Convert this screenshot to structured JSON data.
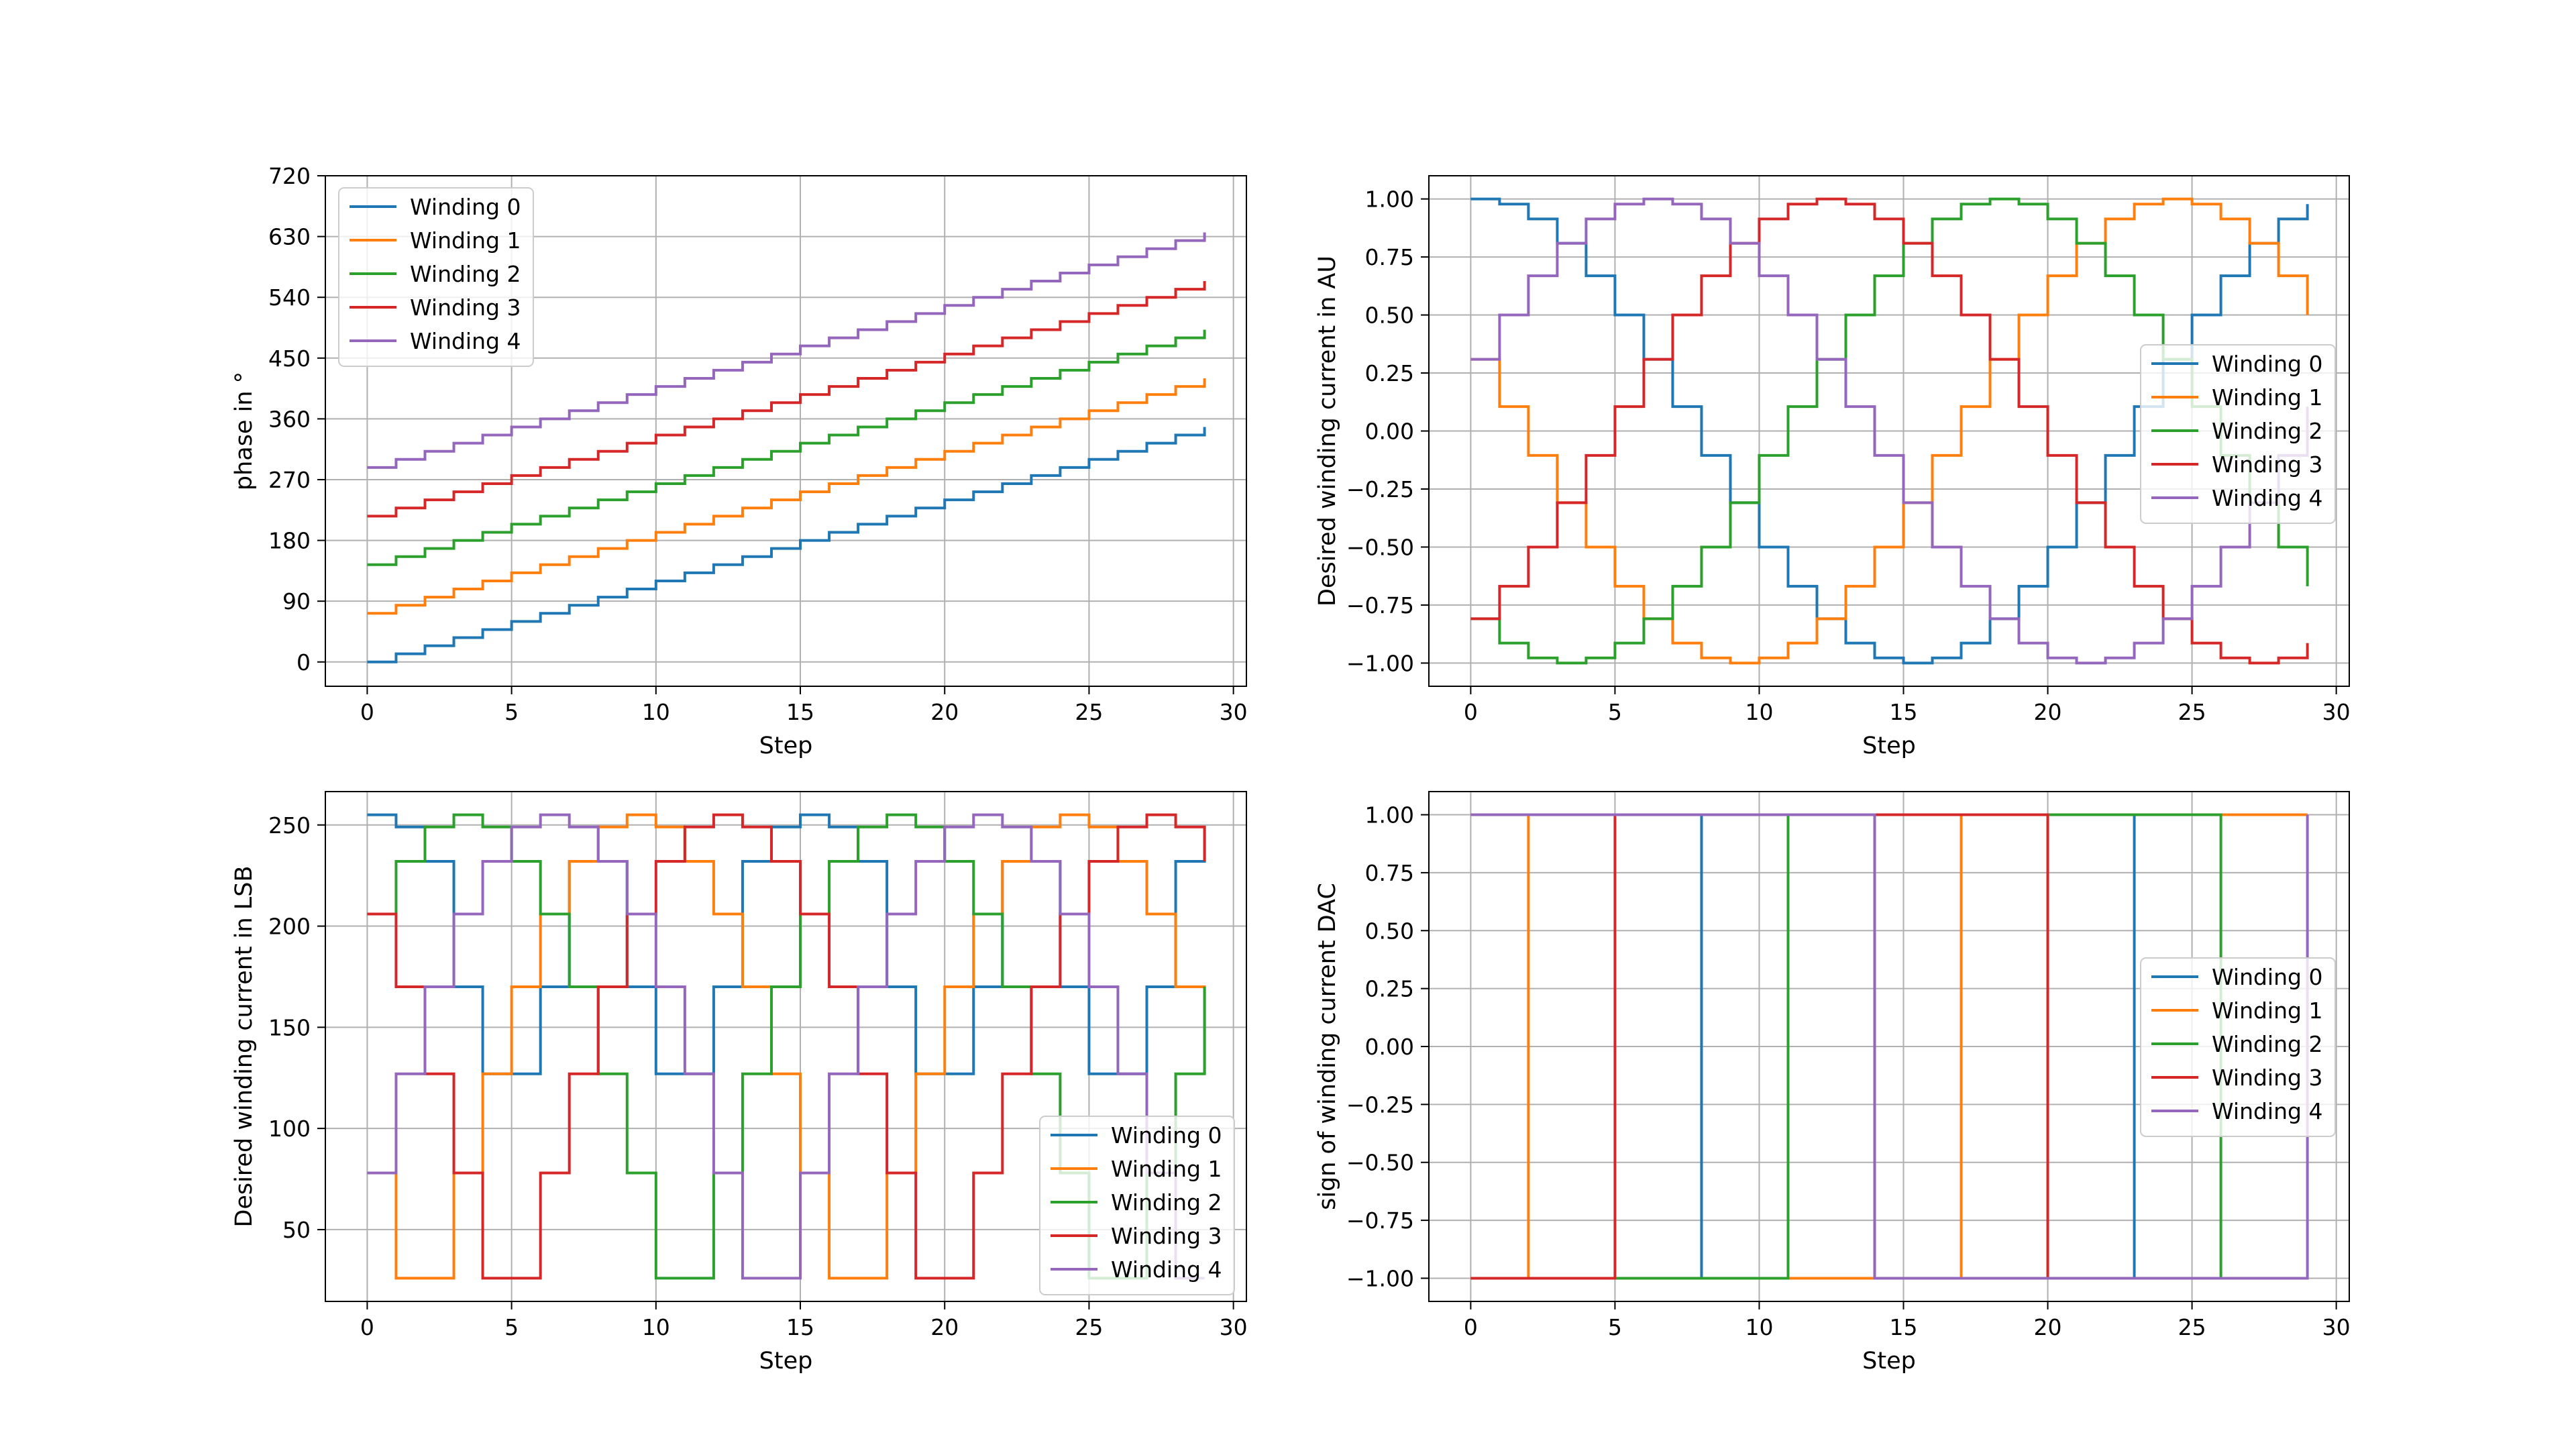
{
  "colors": [
    "#1f77b4",
    "#ff7f0e",
    "#2ca02c",
    "#d62728",
    "#9467bd"
  ],
  "chart_data": [
    {
      "type": "line",
      "step": "post",
      "xlabel": "Step",
      "ylabel": "phase in °",
      "xlim": [
        -1.45,
        30.45
      ],
      "ylim": [
        -36,
        720
      ],
      "xticks": [
        0,
        5,
        10,
        15,
        20,
        25,
        30
      ],
      "yticks": [
        0,
        90,
        180,
        270,
        360,
        450,
        540,
        630,
        720
      ],
      "grid": true,
      "legend": "top-left",
      "x": [
        0,
        1,
        2,
        3,
        4,
        5,
        6,
        7,
        8,
        9,
        10,
        11,
        12,
        13,
        14,
        15,
        16,
        17,
        18,
        19,
        20,
        21,
        22,
        23,
        24,
        25,
        26,
        27,
        28,
        29
      ],
      "series": [
        {
          "name": "Winding 0",
          "values": [
            0,
            12,
            24,
            36,
            48,
            60,
            72,
            84,
            96,
            108,
            120,
            132,
            144,
            156,
            168,
            180,
            192,
            204,
            216,
            228,
            240,
            252,
            264,
            276,
            288,
            300,
            312,
            324,
            336,
            348
          ]
        },
        {
          "name": "Winding 1",
          "values": [
            72,
            84,
            96,
            108,
            120,
            132,
            144,
            156,
            168,
            180,
            192,
            204,
            216,
            228,
            240,
            252,
            264,
            276,
            288,
            300,
            312,
            324,
            336,
            348,
            360,
            372,
            384,
            396,
            408,
            420
          ]
        },
        {
          "name": "Winding 2",
          "values": [
            144,
            156,
            168,
            180,
            192,
            204,
            216,
            228,
            240,
            252,
            264,
            276,
            288,
            300,
            312,
            324,
            336,
            348,
            360,
            372,
            384,
            396,
            408,
            420,
            432,
            444,
            456,
            468,
            480,
            492
          ]
        },
        {
          "name": "Winding 3",
          "values": [
            216,
            228,
            240,
            252,
            264,
            276,
            288,
            300,
            312,
            324,
            336,
            348,
            360,
            372,
            384,
            396,
            408,
            420,
            432,
            444,
            456,
            468,
            480,
            492,
            504,
            516,
            528,
            540,
            552,
            564
          ]
        },
        {
          "name": "Winding 4",
          "values": [
            288,
            300,
            312,
            324,
            336,
            348,
            360,
            372,
            384,
            396,
            408,
            420,
            432,
            444,
            456,
            468,
            480,
            492,
            504,
            516,
            528,
            540,
            552,
            564,
            576,
            588,
            600,
            612,
            624,
            636
          ]
        }
      ]
    },
    {
      "type": "line",
      "step": "post",
      "xlabel": "Step",
      "ylabel": "Desired winding current in AU",
      "xlim": [
        -1.45,
        30.45
      ],
      "ylim": [
        -1.1,
        1.1
      ],
      "xticks": [
        0,
        5,
        10,
        15,
        20,
        25,
        30
      ],
      "yticks": [
        -1.0,
        -0.75,
        -0.5,
        -0.25,
        0.0,
        0.25,
        0.5,
        0.75,
        1.0
      ],
      "yticklabels": [
        "−1.00",
        "−0.75",
        "−0.50",
        "−0.25",
        "0.00",
        "0.25",
        "0.50",
        "0.75",
        "1.00"
      ],
      "grid": true,
      "legend": "center-right",
      "x": [
        0,
        1,
        2,
        3,
        4,
        5,
        6,
        7,
        8,
        9,
        10,
        11,
        12,
        13,
        14,
        15,
        16,
        17,
        18,
        19,
        20,
        21,
        22,
        23,
        24,
        25,
        26,
        27,
        28,
        29
      ],
      "series": [
        {
          "name": "Winding 0",
          "values": [
            1.0,
            0.978,
            0.914,
            0.809,
            0.669,
            0.5,
            0.309,
            0.105,
            -0.105,
            -0.309,
            -0.5,
            -0.669,
            -0.809,
            -0.914,
            -0.978,
            -1.0,
            -0.978,
            -0.914,
            -0.809,
            -0.669,
            -0.5,
            -0.309,
            -0.105,
            0.105,
            0.309,
            0.5,
            0.669,
            0.809,
            0.914,
            0.978
          ]
        },
        {
          "name": "Winding 1",
          "values": [
            0.309,
            0.105,
            -0.105,
            -0.309,
            -0.5,
            -0.669,
            -0.809,
            -0.914,
            -0.978,
            -1.0,
            -0.978,
            -0.914,
            -0.809,
            -0.669,
            -0.5,
            -0.309,
            -0.105,
            0.105,
            0.309,
            0.5,
            0.669,
            0.809,
            0.914,
            0.978,
            1.0,
            0.978,
            0.914,
            0.809,
            0.669,
            0.5
          ]
        },
        {
          "name": "Winding 2",
          "values": [
            -0.809,
            -0.914,
            -0.978,
            -1.0,
            -0.978,
            -0.914,
            -0.809,
            -0.669,
            -0.5,
            -0.309,
            -0.105,
            0.105,
            0.309,
            0.5,
            0.669,
            0.809,
            0.914,
            0.978,
            1.0,
            0.978,
            0.914,
            0.809,
            0.669,
            0.5,
            0.309,
            0.105,
            -0.105,
            -0.309,
            -0.5,
            -0.669
          ]
        },
        {
          "name": "Winding 3",
          "values": [
            -0.809,
            -0.669,
            -0.5,
            -0.309,
            -0.105,
            0.105,
            0.309,
            0.5,
            0.669,
            0.809,
            0.914,
            0.978,
            1.0,
            0.978,
            0.914,
            0.809,
            0.669,
            0.5,
            0.309,
            0.105,
            -0.105,
            -0.309,
            -0.5,
            -0.669,
            -0.809,
            -0.914,
            -0.978,
            -1.0,
            -0.978,
            -0.914
          ]
        },
        {
          "name": "Winding 4",
          "values": [
            0.309,
            0.5,
            0.669,
            0.809,
            0.914,
            0.978,
            1.0,
            0.978,
            0.914,
            0.809,
            0.669,
            0.5,
            0.309,
            0.105,
            -0.105,
            -0.309,
            -0.5,
            -0.669,
            -0.809,
            -0.914,
            -0.978,
            -1.0,
            -0.978,
            -0.914,
            -0.809,
            -0.669,
            -0.5,
            -0.309,
            -0.105,
            0.105
          ]
        }
      ]
    },
    {
      "type": "line",
      "step": "post",
      "xlabel": "Step",
      "ylabel": "Desired winding current in LSB",
      "xlim": [
        -1.45,
        30.45
      ],
      "ylim": [
        14.5,
        266.5
      ],
      "xticks": [
        0,
        5,
        10,
        15,
        20,
        25,
        30
      ],
      "yticks": [
        50,
        100,
        150,
        200,
        250
      ],
      "grid": true,
      "legend": "bottom-right",
      "x": [
        0,
        1,
        2,
        3,
        4,
        5,
        6,
        7,
        8,
        9,
        10,
        11,
        12,
        13,
        14,
        15,
        16,
        17,
        18,
        19,
        20,
        21,
        22,
        23,
        24,
        25,
        26,
        27,
        28,
        29
      ],
      "series": [
        {
          "name": "Winding 0",
          "values": [
            255,
            249,
            232,
            170,
            127,
            127,
            170,
            232,
            232,
            170,
            127,
            127,
            170,
            232,
            249,
            255,
            249,
            232,
            170,
            127,
            127,
            170,
            232,
            232,
            170,
            127,
            127,
            170,
            232,
            249
          ]
        },
        {
          "name": "Winding 1",
          "values": [
            78,
            26,
            26,
            78,
            127,
            170,
            206,
            232,
            249,
            255,
            249,
            232,
            206,
            170,
            127,
            78,
            26,
            26,
            78,
            127,
            170,
            206,
            232,
            249,
            255,
            249,
            232,
            206,
            170,
            127
          ]
        },
        {
          "name": "Winding 2",
          "values": [
            206,
            232,
            249,
            255,
            249,
            232,
            206,
            170,
            127,
            78,
            26,
            26,
            78,
            127,
            170,
            206,
            232,
            249,
            255,
            249,
            232,
            206,
            170,
            127,
            78,
            26,
            26,
            78,
            127,
            170
          ]
        },
        {
          "name": "Winding 3",
          "values": [
            206,
            170,
            127,
            78,
            26,
            26,
            78,
            127,
            170,
            206,
            232,
            249,
            255,
            249,
            232,
            206,
            170,
            127,
            78,
            26,
            26,
            78,
            127,
            170,
            206,
            232,
            249,
            255,
            249,
            232
          ]
        },
        {
          "name": "Winding 4",
          "values": [
            78,
            127,
            170,
            206,
            232,
            249,
            255,
            249,
            232,
            206,
            170,
            127,
            78,
            26,
            26,
            78,
            127,
            170,
            206,
            232,
            249,
            255,
            249,
            232,
            206,
            170,
            127,
            78,
            26,
            26
          ]
        }
      ]
    },
    {
      "type": "line",
      "step": "post",
      "xlabel": "Step",
      "ylabel": "sign of winding current DAC",
      "xlim": [
        -1.45,
        30.45
      ],
      "ylim": [
        -1.1,
        1.1
      ],
      "xticks": [
        0,
        5,
        10,
        15,
        20,
        25,
        30
      ],
      "yticks": [
        -1.0,
        -0.75,
        -0.5,
        -0.25,
        0.0,
        0.25,
        0.5,
        0.75,
        1.0
      ],
      "yticklabels": [
        "−1.00",
        "−0.75",
        "−0.50",
        "−0.25",
        "0.00",
        "0.25",
        "0.50",
        "0.75",
        "1.00"
      ],
      "grid": true,
      "legend": "center-right",
      "x": [
        0,
        1,
        2,
        3,
        4,
        5,
        6,
        7,
        8,
        9,
        10,
        11,
        12,
        13,
        14,
        15,
        16,
        17,
        18,
        19,
        20,
        21,
        22,
        23,
        24,
        25,
        26,
        27,
        28,
        29
      ],
      "series": [
        {
          "name": "Winding 0",
          "values": [
            1,
            1,
            1,
            1,
            1,
            1,
            1,
            1,
            -1,
            -1,
            -1,
            -1,
            -1,
            -1,
            -1,
            -1,
            -1,
            -1,
            -1,
            -1,
            -1,
            -1,
            -1,
            1,
            1,
            1,
            1,
            1,
            1,
            1
          ]
        },
        {
          "name": "Winding 1",
          "values": [
            1,
            1,
            -1,
            -1,
            -1,
            -1,
            -1,
            -1,
            -1,
            -1,
            -1,
            -1,
            -1,
            -1,
            -1,
            -1,
            -1,
            1,
            1,
            1,
            1,
            1,
            1,
            1,
            1,
            1,
            1,
            1,
            1,
            1
          ]
        },
        {
          "name": "Winding 2",
          "values": [
            -1,
            -1,
            -1,
            -1,
            -1,
            -1,
            -1,
            -1,
            -1,
            -1,
            -1,
            1,
            1,
            1,
            1,
            1,
            1,
            1,
            1,
            1,
            1,
            1,
            1,
            1,
            1,
            1,
            -1,
            -1,
            -1,
            -1
          ]
        },
        {
          "name": "Winding 3",
          "values": [
            -1,
            -1,
            -1,
            -1,
            -1,
            1,
            1,
            1,
            1,
            1,
            1,
            1,
            1,
            1,
            1,
            1,
            1,
            1,
            1,
            1,
            -1,
            -1,
            -1,
            -1,
            -1,
            -1,
            -1,
            -1,
            -1,
            -1
          ]
        },
        {
          "name": "Winding 4",
          "values": [
            1,
            1,
            1,
            1,
            1,
            1,
            1,
            1,
            1,
            1,
            1,
            1,
            1,
            1,
            -1,
            -1,
            -1,
            -1,
            -1,
            -1,
            -1,
            -1,
            -1,
            -1,
            -1,
            -1,
            -1,
            -1,
            -1,
            1
          ]
        }
      ]
    }
  ]
}
